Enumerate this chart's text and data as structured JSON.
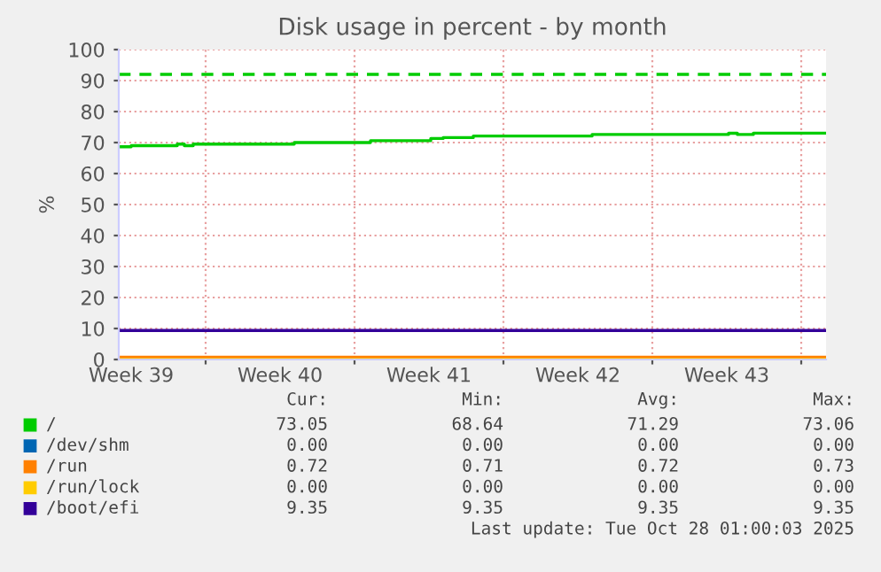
{
  "chart_data": {
    "type": "step",
    "title": "Disk usage in percent - by month",
    "ylabel": "%",
    "xlim": [
      "2025-09-24T22:00",
      "2025-10-28T04:00"
    ],
    "xticks": [
      {
        "value": "2025-09-25T12:00",
        "label": "Week 39"
      },
      {
        "value": "2025-10-02T12:00",
        "label": "Week 40"
      },
      {
        "value": "2025-10-09T12:00",
        "label": "Week 41"
      },
      {
        "value": "2025-10-16T12:00",
        "label": "Week 42"
      },
      {
        "value": "2025-10-23T12:00",
        "label": "Week 43"
      },
      {
        "value": "2025-09-29",
        "label": null
      },
      {
        "value": "2025-10-06",
        "label": null
      },
      {
        "value": "2025-10-13",
        "label": null
      },
      {
        "value": "2025-10-20",
        "label": null
      },
      {
        "value": "2025-10-27",
        "label": null
      }
    ],
    "ylim": [
      0,
      100
    ],
    "yticks": [
      0,
      10,
      20,
      30,
      40,
      50,
      60,
      70,
      80,
      90,
      100
    ],
    "grid": true,
    "legend": "bottom",
    "series": [
      {
        "name": "/",
        "color": "#00cc00",
        "x": [
          "2025-09-24T22:00",
          "2025-09-25T12:00",
          "2025-09-27T16:00",
          "2025-09-28T00:00",
          "2025-09-28T10:00",
          "2025-10-03T04:00",
          "2025-10-06T18:00",
          "2025-10-09T14:00",
          "2025-10-10T04:00",
          "2025-10-11T14:00",
          "2025-10-17T04:00",
          "2025-10-23T14:00",
          "2025-10-24T00:00",
          "2025-10-24T18:00",
          "2025-10-28T04:00"
        ],
        "values": [
          68.64,
          69.0,
          69.5,
          69.0,
          69.5,
          70.0,
          70.6,
          71.3,
          71.6,
          72.1,
          72.6,
          73.0,
          72.6,
          73.05,
          73.05
        ]
      },
      {
        "name": "/dev/shm",
        "color": "#0066b3"
      },
      {
        "name": "/run",
        "color": "#ff8000",
        "x": [
          "2025-09-24T22:00",
          "2025-10-28T04:00"
        ],
        "values": [
          0.72,
          0.72
        ]
      },
      {
        "name": "/run/lock",
        "color": "#ffcc00",
        "x": [
          "2025-09-24T22:00",
          "2025-10-28T04:00"
        ],
        "values": [
          0,
          0
        ]
      },
      {
        "name": "/boot/efi",
        "color": "#330099",
        "x": [
          "2025-09-24T22:00",
          "2025-10-28T04:00"
        ],
        "values": [
          9.35,
          9.35
        ]
      }
    ],
    "ref_lines": [
      {
        "axis": "y",
        "value": 92,
        "color": "#00cc00",
        "line_style": "dashed"
      }
    ],
    "annotations": [
      "Cur:",
      "Min:",
      "Avg:",
      "Max:",
      "73.05",
      "68.64",
      "71.29",
      "73.06",
      "0.00",
      "0.00",
      "0.00",
      "0.00",
      "0.72",
      "0.71",
      "0.72",
      "0.73",
      "0.00",
      "0.00",
      "0.00",
      "0.00",
      "9.35",
      "9.35",
      "9.35",
      "9.35",
      "Last update: Tue Oct 28 01:00:03 2025"
    ]
  }
}
